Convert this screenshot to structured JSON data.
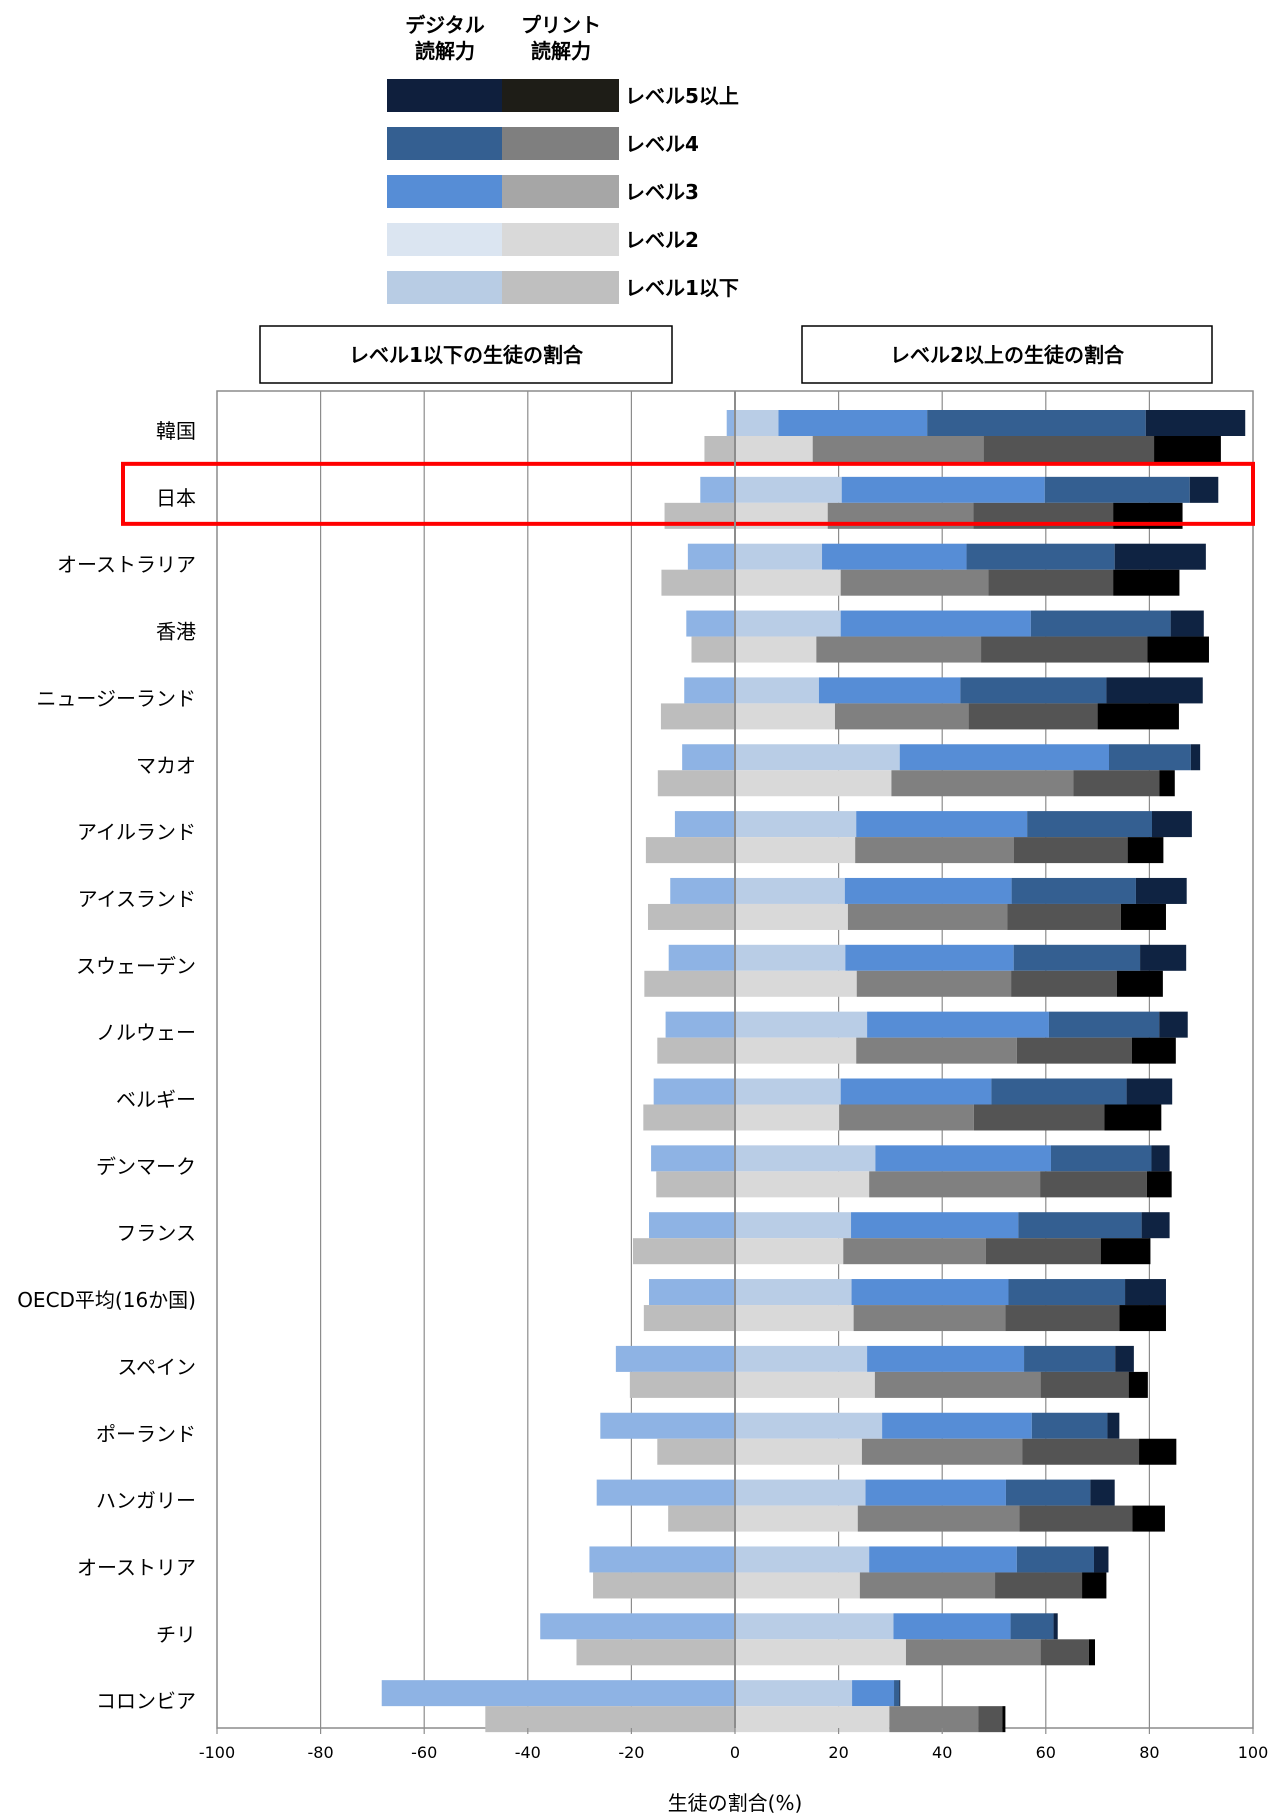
{
  "chart_data": {
    "type": "bar",
    "orientation": "horizontal",
    "stacked": "diverging",
    "xlabel": "生徒の割合(%)",
    "xlim": [
      -100,
      100
    ],
    "xticks": [
      -100,
      -80,
      -60,
      -40,
      -20,
      0,
      20,
      40,
      60,
      80,
      100
    ],
    "grid": true,
    "legend": {
      "headers": [
        "デジタル\n読解力",
        "プリント\n読解力"
      ],
      "levels": [
        {
          "label": "レベル5以上",
          "digital_color": "#0f1f3d",
          "print_color": "#1e1d17"
        },
        {
          "label": "レベル4",
          "digital_color": "#345f91",
          "print_color": "#7f7f7f"
        },
        {
          "label": "レベル3",
          "digital_color": "#568dd6",
          "print_color": "#a6a6a6"
        },
        {
          "label": "レベル2",
          "digital_color": "#dbe5f1",
          "print_color": "#d9d9d9"
        },
        {
          "label": "レベル1以下",
          "digital_color": "#b8cce4",
          "print_color": "#bfbfbf"
        }
      ]
    },
    "section_labels": [
      "レベル1以下の生徒の割合",
      "レベル2以上の生徒の割合"
    ],
    "bar_colors": {
      "digital": {
        "below1": "#8eb3e4",
        "l2": "#b9cde6",
        "l3": "#568dd6",
        "l4": "#345f91",
        "l5": "#0f2342"
      },
      "print": {
        "below1": "#bdbdbd",
        "l2": "#d9d9d9",
        "l3": "#808080",
        "l4": "#545454",
        "l5": "#000000"
      }
    },
    "highlight": {
      "category": "日本",
      "color": "#ff0000"
    },
    "series_keys": [
      "below1",
      "l2",
      "l3",
      "l4",
      "l5"
    ],
    "categories": [
      {
        "name": "韓国",
        "digital": [
          1.6,
          8.4,
          28.7,
          42.2,
          19.2
        ],
        "print": [
          5.9,
          15.0,
          33.0,
          32.9,
          12.9
        ]
      },
      {
        "name": "日本",
        "digital": [
          6.7,
          20.6,
          39.2,
          28.0,
          5.5
        ],
        "print": [
          13.6,
          17.9,
          28.1,
          27.0,
          13.4
        ]
      },
      {
        "name": "オーストラリア",
        "digital": [
          9.1,
          16.8,
          27.9,
          28.6,
          17.6
        ],
        "print": [
          14.2,
          20.4,
          28.5,
          24.1,
          12.8
        ]
      },
      {
        "name": "香港",
        "digital": [
          9.4,
          20.4,
          36.7,
          27.0,
          6.4
        ],
        "print": [
          8.4,
          15.7,
          31.8,
          32.1,
          11.9
        ]
      },
      {
        "name": "ニュージーランド",
        "digital": [
          9.8,
          16.2,
          27.3,
          28.2,
          18.6
        ],
        "print": [
          14.3,
          19.3,
          25.8,
          24.9,
          15.7
        ]
      },
      {
        "name": "マカオ",
        "digital": [
          10.2,
          31.8,
          40.4,
          15.8,
          1.8
        ],
        "print": [
          14.9,
          30.2,
          35.1,
          16.6,
          3.0
        ]
      },
      {
        "name": "アイルランド",
        "digital": [
          11.6,
          23.4,
          33.0,
          24.1,
          7.7
        ],
        "print": [
          17.2,
          23.2,
          30.6,
          22.0,
          6.9
        ]
      },
      {
        "name": "アイスランド",
        "digital": [
          12.5,
          21.2,
          32.2,
          24.0,
          9.8
        ],
        "print": [
          16.8,
          21.8,
          30.8,
          21.9,
          8.7
        ]
      },
      {
        "name": "スウェーデン",
        "digital": [
          12.8,
          21.3,
          32.5,
          24.4,
          8.9
        ],
        "print": [
          17.5,
          23.5,
          29.8,
          20.4,
          8.9
        ]
      },
      {
        "name": "ノルウェー",
        "digital": [
          13.4,
          25.5,
          35.1,
          21.3,
          5.5
        ],
        "print": [
          15.0,
          23.4,
          31.0,
          22.2,
          8.5
        ]
      },
      {
        "name": "ベルギー",
        "digital": [
          15.7,
          20.4,
          29.1,
          26.1,
          8.8
        ],
        "print": [
          17.7,
          20.1,
          26.0,
          25.2,
          11.0
        ]
      },
      {
        "name": "デンマーク",
        "digital": [
          16.2,
          27.1,
          33.9,
          19.4,
          3.5
        ],
        "print": [
          15.2,
          25.9,
          33.0,
          20.6,
          4.8
        ]
      },
      {
        "name": "フランス",
        "digital": [
          16.6,
          22.4,
          32.3,
          23.8,
          5.4
        ],
        "print": [
          19.7,
          20.9,
          27.5,
          22.2,
          9.6
        ]
      },
      {
        "name": "OECD平均(16か国)",
        "digital": [
          16.6,
          22.5,
          30.3,
          22.5,
          7.9
        ],
        "print": [
          17.6,
          22.9,
          29.3,
          22.0,
          9.0
        ]
      },
      {
        "name": "スペイン",
        "digital": [
          23.0,
          25.5,
          30.3,
          17.6,
          3.6
        ],
        "print": [
          20.3,
          27.0,
          32.0,
          17.0,
          3.7
        ]
      },
      {
        "name": "ポーランド",
        "digital": [
          26.0,
          28.4,
          28.9,
          14.6,
          2.3
        ],
        "print": [
          15.0,
          24.5,
          31.0,
          22.5,
          7.2
        ]
      },
      {
        "name": "ハンガリー",
        "digital": [
          26.7,
          25.2,
          27.1,
          16.3,
          4.7
        ],
        "print": [
          12.9,
          23.7,
          31.2,
          21.8,
          6.3
        ]
      },
      {
        "name": "オーストリア",
        "digital": [
          28.1,
          25.9,
          28.5,
          14.9,
          2.8
        ],
        "print": [
          27.4,
          24.1,
          26.1,
          16.8,
          4.7
        ]
      },
      {
        "name": "チリ",
        "digital": [
          37.6,
          30.6,
          22.6,
          8.3,
          0.8
        ],
        "print": [
          30.6,
          33.0,
          26.0,
          9.3,
          1.2
        ]
      },
      {
        "name": "コロンビア",
        "digital": [
          68.2,
          22.6,
          8.1,
          1.0,
          0.2
        ],
        "print": [
          48.2,
          29.8,
          17.2,
          4.6,
          0.6
        ]
      }
    ]
  }
}
